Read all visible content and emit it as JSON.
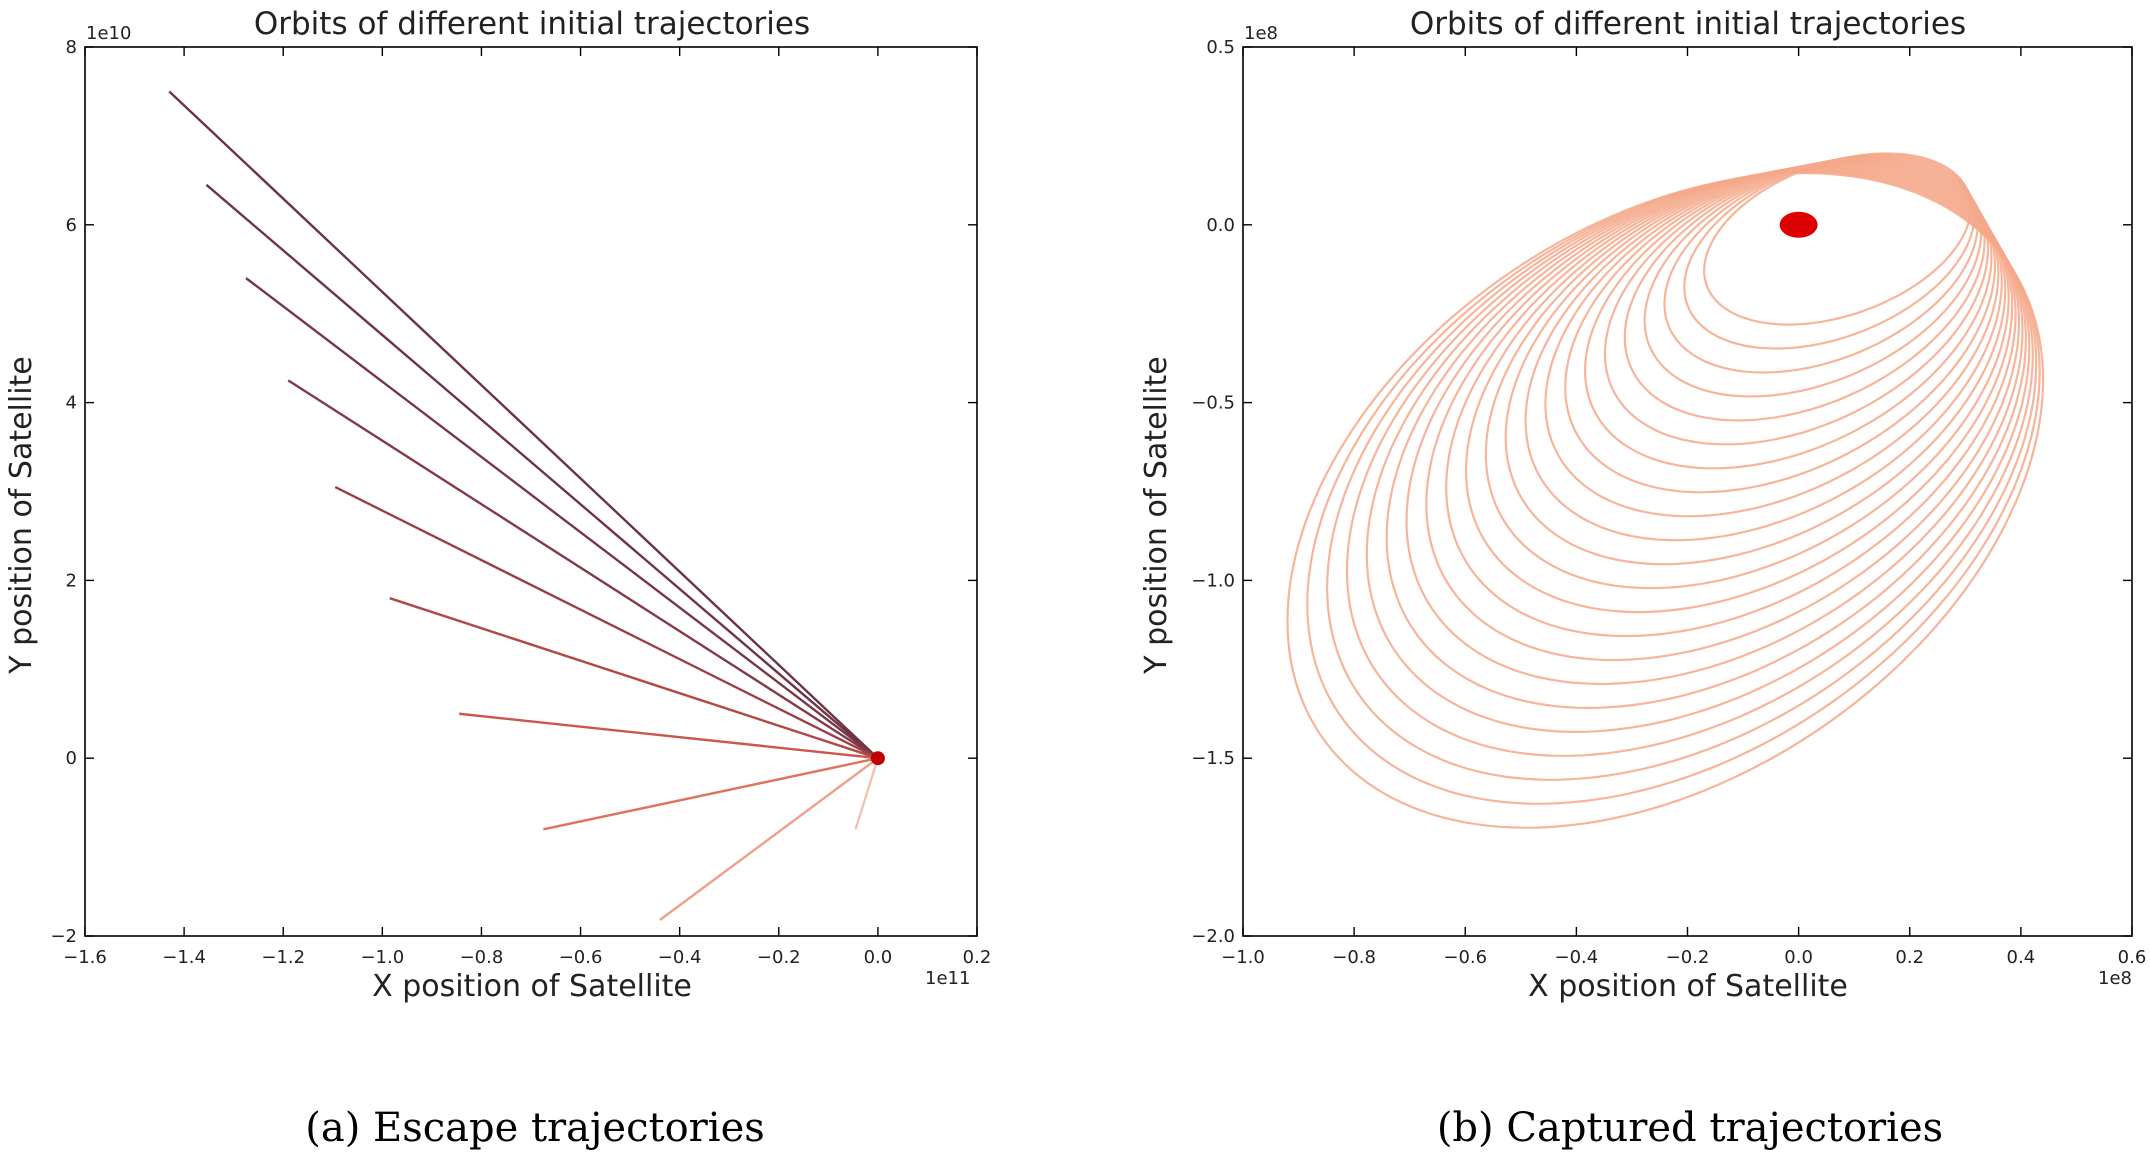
{
  "chart_data": [
    {
      "type": "line",
      "title": "Orbits of different initial trajectories",
      "xlabel": "X position of Satellite",
      "ylabel": "Y position of Satellite",
      "x_offset_label": "1e11",
      "y_offset_label": "1e10",
      "xlim": [
        -1.6,
        0.2
      ],
      "ylim": [
        -2,
        8
      ],
      "xticks": [
        "−1.6",
        "−1.4",
        "−1.2",
        "−1.0",
        "−0.8",
        "−0.6",
        "−0.4",
        "−0.2",
        "0.0",
        "0.2"
      ],
      "yticks": [
        "−2",
        "0",
        "2",
        "4",
        "6",
        "8"
      ],
      "grid": false,
      "central_body": {
        "x": 0.0,
        "y": 0.0,
        "color": "#c00000"
      },
      "series": [
        {
          "x": [
            0.0,
            -1.43
          ],
          "y": [
            0.0,
            7.5
          ],
          "color": "#6b3344"
        },
        {
          "x": [
            0.0,
            -1.355
          ],
          "y": [
            0.0,
            6.45
          ],
          "color": "#6f3545"
        },
        {
          "x": [
            0.0,
            -1.275
          ],
          "y": [
            0.0,
            5.4
          ],
          "color": "#773846"
        },
        {
          "x": [
            0.0,
            -1.19
          ],
          "y": [
            0.0,
            4.25
          ],
          "color": "#843a48"
        },
        {
          "x": [
            0.0,
            -1.095
          ],
          "y": [
            0.0,
            3.05
          ],
          "color": "#9a3f48"
        },
        {
          "x": [
            0.0,
            -0.985
          ],
          "y": [
            0.0,
            1.8
          ],
          "color": "#b24747"
        },
        {
          "x": [
            0.0,
            -0.845
          ],
          "y": [
            0.0,
            0.5
          ],
          "color": "#c9574b"
        },
        {
          "x": [
            0.0,
            -0.675
          ],
          "y": [
            0.0,
            -0.8
          ],
          "color": "#de735c"
        },
        {
          "x": [
            0.0,
            -0.44
          ],
          "y": [
            0.0,
            -1.82
          ],
          "color": "#eea088"
        },
        {
          "x": [
            0.0,
            -0.045
          ],
          "y": [
            0.0,
            -0.8
          ],
          "color": "#f3c1ad"
        }
      ]
    },
    {
      "type": "line",
      "title": "Orbits of different initial trajectories",
      "xlabel": "X position of Satellite",
      "ylabel": "Y position of Satellite",
      "x_offset_label": "1e8",
      "y_offset_label": "1e8",
      "xlim": [
        -1.0,
        0.6
      ],
      "ylim": [
        -2.0,
        0.5
      ],
      "xticks": [
        "−1.0",
        "−0.8",
        "−0.6",
        "−0.4",
        "−0.2",
        "0.0",
        "0.2",
        "0.4",
        "0.6"
      ],
      "yticks": [
        "−2.0",
        "−1.5",
        "−1.0",
        "−0.5",
        "0.0",
        "0.5"
      ],
      "grid": false,
      "central_body": {
        "x": 0.0,
        "y": 0.0,
        "color": "#dd0000"
      },
      "orbit_color": "#f4a889",
      "orbit_count": 22,
      "outer_orbit": {
        "xmin": -0.92,
        "xmax": 0.44,
        "ymin": -1.77,
        "ymax": 0.22
      },
      "inner_orbit": {
        "xmin": -0.17,
        "xmax": 0.31,
        "ymin": -0.3,
        "ymax": 0.22
      }
    }
  ],
  "captions": {
    "a": "(a) Escape trajectories",
    "b": "(b) Captured trajectories"
  }
}
